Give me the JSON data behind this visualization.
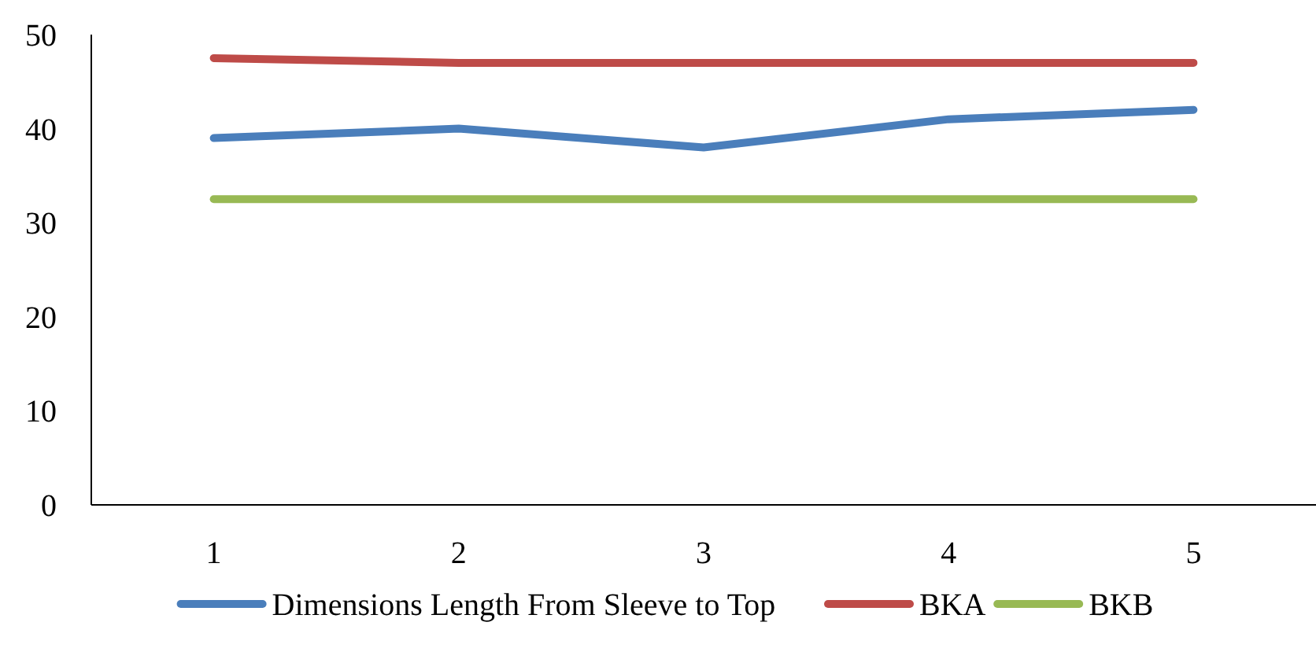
{
  "chart_data": {
    "type": "line",
    "categories": [
      "1",
      "2",
      "3",
      "4",
      "5"
    ],
    "series": [
      {
        "name": "Dimensions Length From Sleeve to Top",
        "color": "#4a7ebb",
        "values": [
          39,
          40,
          38,
          41,
          42
        ]
      },
      {
        "name": "BKA",
        "color": "#be4b48",
        "values": [
          47.5,
          47,
          47,
          47,
          47
        ]
      },
      {
        "name": "BKB",
        "color": "#98b954",
        "values": [
          32.5,
          32.5,
          32.5,
          32.5,
          32.5
        ]
      }
    ],
    "ylim": [
      0,
      50
    ],
    "yticks": [
      0,
      10,
      20,
      30,
      40,
      50
    ],
    "grid": false,
    "legend": "bottom",
    "marker": "none",
    "line_style": "solid"
  }
}
